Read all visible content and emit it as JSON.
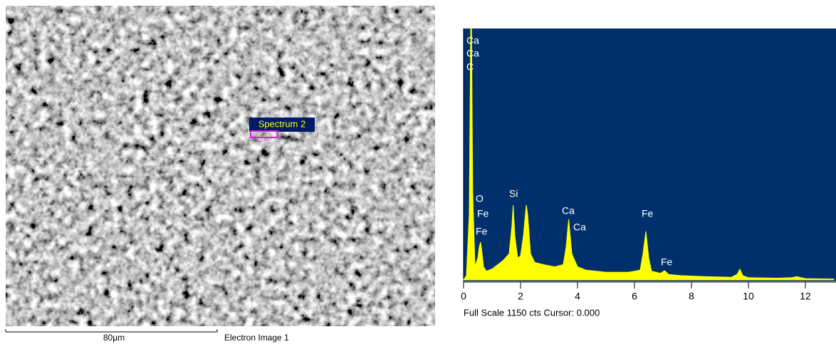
{
  "sem_image": {
    "spectrum_label": "Spectrum 2",
    "scale_bar": "80µm",
    "caption": "Electron Image 1"
  },
  "chart_data": {
    "type": "area",
    "x": [
      0,
      0.1,
      0.2,
      0.25,
      0.28,
      0.32,
      0.4,
      0.5,
      0.55,
      0.6,
      0.65,
      0.7,
      0.8,
      1.0,
      1.2,
      1.4,
      1.6,
      1.7,
      1.74,
      1.8,
      1.9,
      2.0,
      2.1,
      2.2,
      2.25,
      2.35,
      2.5,
      2.8,
      3.2,
      3.5,
      3.6,
      3.69,
      3.8,
      4.0,
      4.1,
      4.3,
      5.0,
      5.8,
      6.2,
      6.3,
      6.4,
      6.5,
      6.6,
      6.9,
      7.06,
      7.2,
      7.6,
      8.5,
      9.4,
      9.6,
      9.7,
      9.8,
      10.0,
      11.0,
      11.5,
      11.7,
      12.0,
      13.0
    ],
    "values": [
      0,
      20,
      300,
      1150,
      1150,
      400,
      60,
      100,
      150,
      173,
      120,
      60,
      40,
      50,
      70,
      90,
      120,
      250,
      342,
      200,
      100,
      110,
      200,
      342,
      300,
      120,
      80,
      70,
      60,
      70,
      150,
      277,
      120,
      60,
      55,
      45,
      35,
      35,
      45,
      120,
      222,
      100,
      40,
      30,
      42,
      25,
      20,
      15,
      12,
      25,
      49,
      20,
      10,
      8,
      10,
      15,
      6,
      4
    ],
    "color": "#ffff00",
    "background": "#00306c",
    "xlim": [
      0,
      13.05
    ],
    "ylim": [
      0,
      1150
    ],
    "xticks": [
      0,
      2,
      4,
      6,
      8,
      10,
      12
    ],
    "annotations": [
      "Ca",
      "Ca",
      "C",
      "O",
      "Fe",
      "Fe",
      "Si",
      "Ca",
      "Ca",
      "Fe",
      "Fe"
    ],
    "footer": "Full Scale 1150 cts Cursor: 0.000"
  }
}
